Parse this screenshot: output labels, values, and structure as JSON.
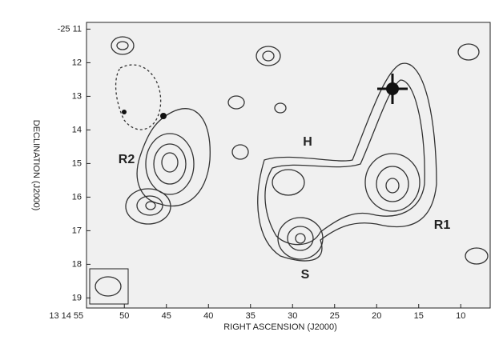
{
  "chart_data": {
    "type": "image",
    "xlabel": "RIGHT ASCENSION (J2000)",
    "ylabel": "DECLINATION (J2000)",
    "xlim": [
      54.5,
      6.5
    ],
    "xticks": [
      {
        "value": 55,
        "label": "13 14 55"
      },
      50,
      45,
      40,
      35,
      30,
      25,
      20,
      15,
      10
    ],
    "ylim": [
      19.3,
      10.8
    ],
    "yticks": [
      {
        "value": 11,
        "label": "-25 11"
      },
      12,
      13,
      14,
      15,
      16,
      17,
      18,
      19
    ],
    "annotations": [
      "R2",
      "H",
      "R1",
      "S"
    ]
  }
}
